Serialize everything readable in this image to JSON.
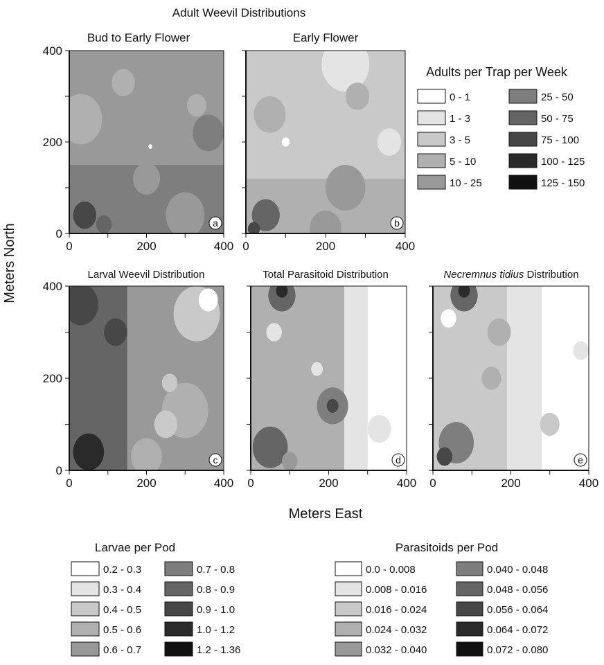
{
  "title": "Adult Weevil Distributions",
  "axis_labels": {
    "y": "Meters North",
    "x": "Meters East"
  },
  "colors": {
    "scale": [
      "#ffffff",
      "#e4e4e4",
      "#c9c9c9",
      "#b0b0b0",
      "#999999",
      "#7e7e7e",
      "#656565",
      "#474747",
      "#2a2a2a",
      "#111111"
    ],
    "panel_border": "#111111"
  },
  "chart_data": [
    {
      "type": "heatmap",
      "id": "a",
      "title": "Bud to Early Flower",
      "xlim": [
        0,
        400
      ],
      "ylim": [
        0,
        400
      ],
      "x_ticks": [
        "0",
        "200",
        "400"
      ],
      "y_ticks": [
        "0",
        "200",
        "400"
      ],
      "legend": "adults",
      "base_level": 4,
      "bands": [
        {
          "yRange": [
            0,
            150
          ],
          "level": 5
        }
      ],
      "blobs": [
        {
          "x": 30,
          "y": 250,
          "r": 55,
          "level": 3
        },
        {
          "x": 140,
          "y": 330,
          "r": 30,
          "level": 3
        },
        {
          "x": 360,
          "y": 220,
          "r": 40,
          "level": 5
        },
        {
          "x": 200,
          "y": 120,
          "r": 35,
          "level": 4
        },
        {
          "x": 300,
          "y": 40,
          "r": 50,
          "level": 4
        },
        {
          "x": 210,
          "y": 190,
          "r": 5,
          "level": 0
        },
        {
          "x": 330,
          "y": 280,
          "r": 25,
          "level": 3
        },
        {
          "x": 40,
          "y": 40,
          "r": 30,
          "level": 7
        },
        {
          "x": 90,
          "y": 20,
          "r": 20,
          "level": 6
        }
      ],
      "label": "a"
    },
    {
      "type": "heatmap",
      "id": "b",
      "title": "Early Flower",
      "xlim": [
        0,
        400
      ],
      "ylim": [
        0,
        400
      ],
      "x_ticks": [
        "0",
        "200",
        "400"
      ],
      "y_ticks": [],
      "legend": "adults",
      "base_level": 2,
      "bands": [
        {
          "yRange": [
            0,
            120
          ],
          "level": 3
        }
      ],
      "blobs": [
        {
          "x": 250,
          "y": 370,
          "r": 60,
          "level": 1
        },
        {
          "x": 60,
          "y": 260,
          "r": 40,
          "level": 3
        },
        {
          "x": 280,
          "y": 300,
          "r": 30,
          "level": 3
        },
        {
          "x": 250,
          "y": 100,
          "r": 50,
          "level": 4
        },
        {
          "x": 200,
          "y": 10,
          "r": 40,
          "level": 4
        },
        {
          "x": 360,
          "y": 200,
          "r": 30,
          "level": 1
        },
        {
          "x": 100,
          "y": 200,
          "r": 10,
          "level": 0
        },
        {
          "x": 50,
          "y": 40,
          "r": 35,
          "level": 6
        },
        {
          "x": 20,
          "y": 10,
          "r": 15,
          "level": 7
        }
      ],
      "label": "b"
    },
    {
      "type": "heatmap",
      "id": "c",
      "title": "Larval Weevil Distribution",
      "xlim": [
        0,
        400
      ],
      "ylim": [
        0,
        400
      ],
      "x_ticks": [
        "0",
        "200",
        "400"
      ],
      "y_ticks": [
        "0",
        "200",
        "400"
      ],
      "legend": "larvae",
      "base_level": 4,
      "bands": [
        {
          "xRange": [
            0,
            150
          ],
          "level": 6
        }
      ],
      "blobs": [
        {
          "x": 30,
          "y": 360,
          "r": 45,
          "level": 7
        },
        {
          "x": 120,
          "y": 300,
          "r": 30,
          "level": 7
        },
        {
          "x": 330,
          "y": 340,
          "r": 60,
          "level": 2
        },
        {
          "x": 360,
          "y": 370,
          "r": 25,
          "level": 0
        },
        {
          "x": 300,
          "y": 130,
          "r": 60,
          "level": 3
        },
        {
          "x": 250,
          "y": 100,
          "r": 30,
          "level": 2
        },
        {
          "x": 260,
          "y": 190,
          "r": 20,
          "level": 2
        },
        {
          "x": 200,
          "y": 30,
          "r": 40,
          "level": 3
        },
        {
          "x": 50,
          "y": 40,
          "r": 40,
          "level": 8
        }
      ],
      "label": "c"
    },
    {
      "type": "heatmap",
      "id": "d",
      "title": "Total Parasitoid Distribution",
      "xlim": [
        0,
        400
      ],
      "ylim": [
        0,
        400
      ],
      "x_ticks": [
        "0",
        "200",
        "400"
      ],
      "y_ticks": [],
      "legend": "parasitoids",
      "base_level": 1,
      "bands": [
        {
          "xRange": [
            0,
            240
          ],
          "level": 3
        },
        {
          "xRange": [
            300,
            400
          ],
          "level": 0
        }
      ],
      "blobs": [
        {
          "x": 80,
          "y": 380,
          "r": 35,
          "level": 6
        },
        {
          "x": 80,
          "y": 390,
          "r": 15,
          "level": 8
        },
        {
          "x": 210,
          "y": 140,
          "r": 40,
          "level": 5
        },
        {
          "x": 210,
          "y": 140,
          "r": 15,
          "level": 7
        },
        {
          "x": 60,
          "y": 300,
          "r": 20,
          "level": 1
        },
        {
          "x": 170,
          "y": 220,
          "r": 15,
          "level": 1
        },
        {
          "x": 330,
          "y": 90,
          "r": 30,
          "level": 1
        },
        {
          "x": 50,
          "y": 50,
          "r": 45,
          "level": 6
        },
        {
          "x": 100,
          "y": 20,
          "r": 20,
          "level": 4
        }
      ],
      "label": "d"
    },
    {
      "type": "heatmap",
      "id": "e",
      "title_emph": "Necremnus tidius",
      "title_rest": " Distribution",
      "xlim": [
        0,
        400
      ],
      "ylim": [
        0,
        400
      ],
      "x_ticks": [
        "0",
        "200",
        "400"
      ],
      "y_ticks": [],
      "legend": "parasitoids",
      "base_level": 1,
      "bands": [
        {
          "xRange": [
            0,
            190
          ],
          "level": 2
        },
        {
          "xRange": [
            280,
            400
          ],
          "level": 0
        }
      ],
      "blobs": [
        {
          "x": 80,
          "y": 380,
          "r": 35,
          "level": 6
        },
        {
          "x": 80,
          "y": 390,
          "r": 15,
          "level": 8
        },
        {
          "x": 170,
          "y": 300,
          "r": 30,
          "level": 3
        },
        {
          "x": 150,
          "y": 200,
          "r": 25,
          "level": 3
        },
        {
          "x": 40,
          "y": 330,
          "r": 20,
          "level": 0
        },
        {
          "x": 300,
          "y": 100,
          "r": 25,
          "level": 2
        },
        {
          "x": 380,
          "y": 260,
          "r": 20,
          "level": 1
        },
        {
          "x": 60,
          "y": 60,
          "r": 45,
          "level": 5
        },
        {
          "x": 30,
          "y": 30,
          "r": 20,
          "level": 7
        }
      ],
      "label": "e"
    }
  ],
  "legends": {
    "adults": {
      "title": "Adults per Trap per Week",
      "items": [
        "0 - 1",
        "1 - 3",
        "3 - 5",
        "5 - 10",
        "10 - 25",
        "25 - 50",
        "50 - 75",
        "75 - 100",
        "100 - 125",
        "125 - 150"
      ]
    },
    "larvae": {
      "title": "Larvae per Pod",
      "items": [
        "0.2 - 0.3",
        "0.3 - 0.4",
        "0.4 - 0.5",
        "0.5 - 0.6",
        "0.6 - 0.7",
        "0.7 - 0.8",
        "0.8 - 0.9",
        "0.9 - 1.0",
        "1.0 - 1.2",
        "1.2 - 1.36"
      ]
    },
    "parasitoids": {
      "title": "Parasitoids per Pod",
      "items": [
        "0.0 - 0.008",
        "0.008 - 0.016",
        "0.016 - 0.024",
        "0.024 - 0.032",
        "0.032 - 0.040",
        "0.040 - 0.048",
        "0.048 - 0.056",
        "0.056 - 0.064",
        "0.064 - 0.072",
        "0.072 - 0.080"
      ]
    }
  }
}
